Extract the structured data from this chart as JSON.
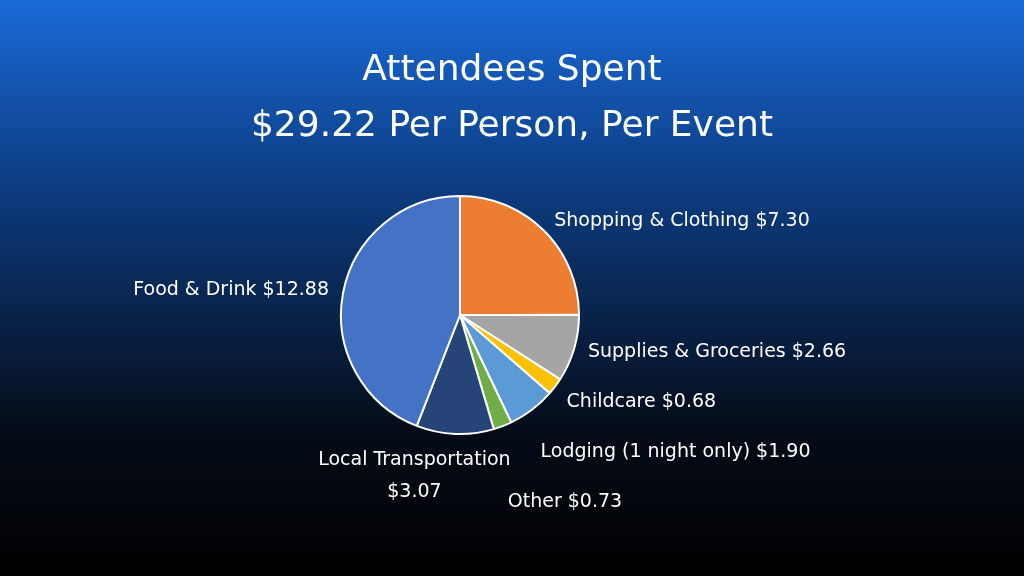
{
  "chart_data": {
    "type": "pie",
    "title": "Attendees Spent\n$29.22 Per Person, Per Event",
    "categories": [
      "Shopping & Clothing",
      "Supplies & Groceries",
      "Childcare",
      "Lodging (1 night only)",
      "Other",
      "Local Transportation",
      "Food & Drink"
    ],
    "values": [
      7.3,
      2.66,
      0.68,
      1.9,
      0.73,
      3.07,
      12.88
    ],
    "value_labels": [
      "$7.30",
      "$2.66",
      "$0.68",
      "$1.90",
      "$0.73",
      "$3.07",
      "$12.88"
    ],
    "colors": [
      "#ed7d31",
      "#a5a5a5",
      "#ffc000",
      "#5b9bd5",
      "#70ad47",
      "#264478",
      "#4472c4"
    ],
    "legend": false
  }
}
